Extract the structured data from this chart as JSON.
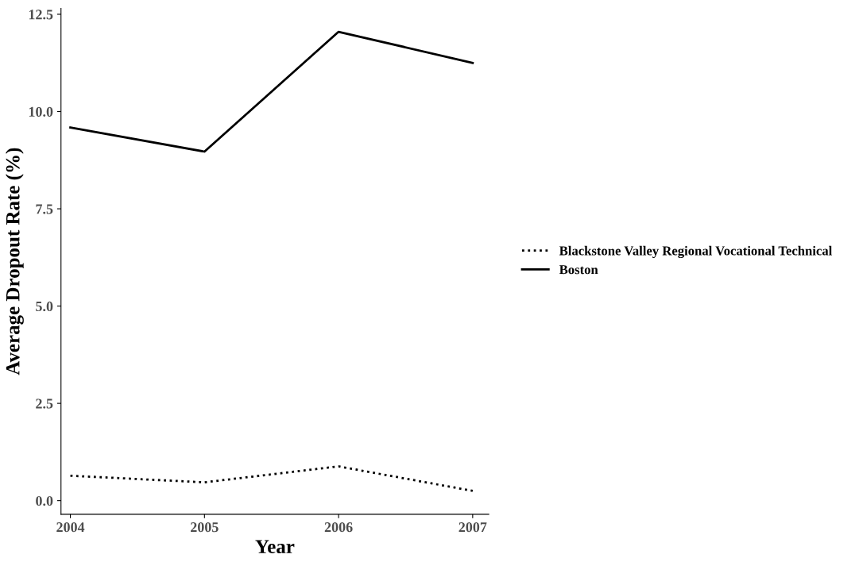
{
  "chart_data": {
    "type": "line",
    "xlabel": "Year",
    "ylabel": "Average Dropout Rate (%)",
    "x": [
      2004,
      2005,
      2006,
      2007
    ],
    "series": [
      {
        "name": "Blackstone Valley Regional Vocational Technical",
        "color": "#000000",
        "line_style": "dotted",
        "values": [
          0.64,
          0.47,
          0.88,
          0.25
        ]
      },
      {
        "name": "Boston",
        "color": "#000000",
        "line_style": "solid",
        "values": [
          9.59,
          8.97,
          12.05,
          11.25
        ]
      }
    ],
    "xlim": [
      2003.93,
      2007.12
    ],
    "xticks": [
      2004,
      2005,
      2006,
      2007
    ],
    "ylim": [
      -0.35,
      12.65
    ],
    "yticks": [
      {
        "value": 0,
        "label": "0.0"
      },
      {
        "value": 2.5,
        "label": "2.5"
      },
      {
        "value": 5,
        "label": "5.0"
      },
      {
        "value": 7.5,
        "label": "7.5"
      },
      {
        "value": 10,
        "label": "10.0"
      },
      {
        "value": 12.5,
        "label": "12.5"
      }
    ],
    "grid": false,
    "legend": "right",
    "marker": "none"
  }
}
